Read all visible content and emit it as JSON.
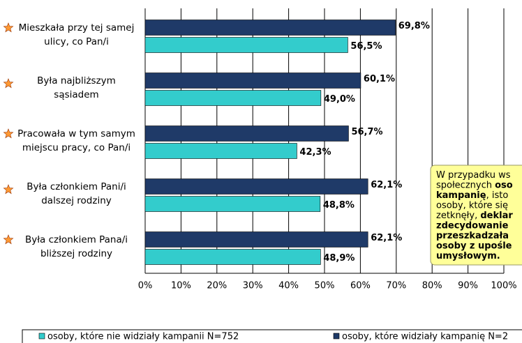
{
  "chart_data": {
    "type": "bar",
    "orientation": "horizontal",
    "categories": [
      "Mieszkała przy tej samej ulicy, co Pan/i",
      "Była najbliższym sąsiadem",
      "Pracowała w tym samym miejscu pracy, co Pan/i",
      "Była członkiem Pani/i dalszej rodziny",
      "Była członkiem Pana/i bliższej rodziny"
    ],
    "series": [
      {
        "name": "osoby, które widziały kampanię N=2",
        "color": "#1f3a68",
        "values": [
          69.8,
          60.1,
          56.7,
          62.1,
          62.1
        ],
        "value_labels": [
          "69,8%",
          "60,1%",
          "56,7%",
          "62,1%",
          "62,1%"
        ]
      },
      {
        "name": "osoby, które nie widziały kampanii N=752",
        "color": "#33cccc",
        "values": [
          56.5,
          49.0,
          42.3,
          48.8,
          48.9
        ],
        "value_labels": [
          "56,5%",
          "49,0%",
          "42,3%",
          "48,8%",
          "48,9%"
        ]
      }
    ],
    "xlim": [
      0,
      100
    ],
    "xticks": [
      {
        "value": 0,
        "label": "0%"
      },
      {
        "value": 10,
        "label": "10%"
      },
      {
        "value": 20,
        "label": "20%"
      },
      {
        "value": 30,
        "label": "30%"
      },
      {
        "value": 40,
        "label": "40%"
      },
      {
        "value": 50,
        "label": "50%"
      },
      {
        "value": 60,
        "label": "60%"
      },
      {
        "value": 70,
        "label": "70%"
      },
      {
        "value": 80,
        "label": "80%"
      },
      {
        "value": 90,
        "label": "90%"
      },
      {
        "value": 100,
        "label": "100%"
      }
    ],
    "grid": true,
    "legend": "bottom",
    "annotation": [
      [
        {
          "text": "W przypadku ws",
          "bold": false
        }
      ],
      [
        {
          "text": "społecznych ",
          "bold": false
        },
        {
          "text": "oso",
          "bold": true
        }
      ],
      [
        {
          "text": "kampanię",
          "bold": true
        },
        {
          "text": ", isto",
          "bold": false
        }
      ],
      [
        {
          "text": "osoby, które się",
          "bold": false
        }
      ],
      [
        {
          "text": "zetknęły, ",
          "bold": false
        },
        {
          "text": "deklar",
          "bold": true
        }
      ],
      [
        {
          "text": "zdecydowanie",
          "bold": true
        }
      ],
      [
        {
          "text": "przeszkadzała",
          "bold": true
        }
      ],
      [
        {
          "text": "osoby z upośle",
          "bold": true
        }
      ],
      [
        {
          "text": "umysłowym.",
          "bold": true
        }
      ]
    ]
  }
}
